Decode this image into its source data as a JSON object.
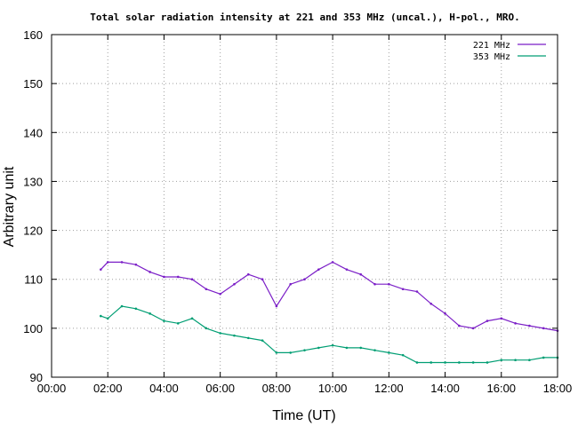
{
  "chart_data": {
    "type": "line",
    "title": "Total solar radiation intensity at 221 and 353 MHz (uncal.), H-pol., MRO.",
    "xlabel": "Time (UT)",
    "ylabel": "Arbitrary unit",
    "xlim": [
      "00:00",
      "18:00"
    ],
    "ylim": [
      90,
      160
    ],
    "x_ticks": [
      "00:00",
      "02:00",
      "04:00",
      "06:00",
      "08:00",
      "10:00",
      "12:00",
      "14:00",
      "16:00",
      "18:00"
    ],
    "y_ticks": [
      90,
      100,
      110,
      120,
      130,
      140,
      150,
      160
    ],
    "grid": true,
    "legend_position": "top-right",
    "colors": {
      "221 MHz": "#7b1fc7",
      "353 MHz": "#009e73"
    },
    "series": [
      {
        "name": "221 MHz",
        "x": [
          "01:45",
          "02:00",
          "02:30",
          "03:00",
          "03:30",
          "04:00",
          "04:30",
          "05:00",
          "05:30",
          "06:00",
          "06:30",
          "07:00",
          "07:30",
          "08:00",
          "08:30",
          "09:00",
          "09:30",
          "10:00",
          "10:30",
          "11:00",
          "11:30",
          "12:00",
          "12:30",
          "13:00",
          "13:30",
          "14:00",
          "14:30",
          "15:00",
          "15:30",
          "16:00",
          "16:30",
          "17:00",
          "17:30",
          "18:00"
        ],
        "values": [
          112,
          113.5,
          113.5,
          113,
          111.5,
          110.5,
          110.5,
          110,
          108,
          107,
          109,
          111,
          110,
          104.5,
          109,
          110,
          112,
          113.5,
          112,
          111,
          109,
          109,
          108,
          107.5,
          105,
          103,
          100.5,
          100,
          101.5,
          102,
          101,
          100.5,
          100,
          99.5
        ]
      },
      {
        "name": "353 MHz",
        "x": [
          "01:45",
          "02:00",
          "02:30",
          "03:00",
          "03:30",
          "04:00",
          "04:30",
          "05:00",
          "05:30",
          "06:00",
          "06:30",
          "07:00",
          "07:30",
          "08:00",
          "08:30",
          "09:00",
          "09:30",
          "10:00",
          "10:30",
          "11:00",
          "11:30",
          "12:00",
          "12:30",
          "13:00",
          "13:30",
          "14:00",
          "14:30",
          "15:00",
          "15:30",
          "16:00",
          "16:30",
          "17:00",
          "17:30",
          "18:00"
        ],
        "values": [
          102.5,
          102,
          104.5,
          104,
          103,
          101.5,
          101,
          102,
          100,
          99,
          98.5,
          98,
          97.5,
          95,
          95,
          95.5,
          96,
          96.5,
          96,
          96,
          95.5,
          95,
          94.5,
          93,
          93,
          93,
          93,
          93,
          93,
          93.5,
          93.5,
          93.5,
          94,
          94
        ]
      }
    ]
  }
}
